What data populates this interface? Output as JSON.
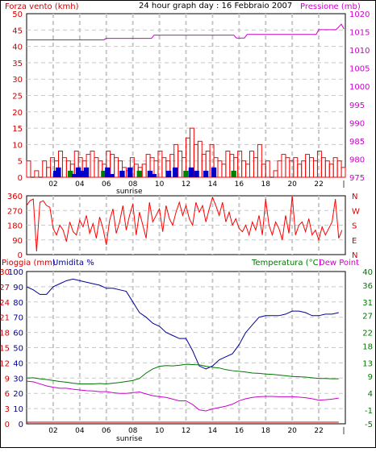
{
  "header": {
    "title": "24 hour graph day : 16 Febbraio 2007",
    "left_label": "Forza vento (kmh)",
    "right_label": "Pressione (mb)"
  },
  "labels": {
    "sunrise": "sunrise",
    "rain": "Pioggia (mm)",
    "humidity": "Umidita %",
    "temperature": "Temperatura (°C)",
    "dewpoint": "Dew Point"
  },
  "colors": {
    "wind": "#ff0000",
    "gust_green": "#008000",
    "gust_blue": "#0000cc",
    "pressure": "#cc00cc",
    "direction": "#ff0000",
    "humidity": "#000099",
    "temperature": "#007700",
    "dewpoint": "#cc00cc",
    "rain": "#cc0000"
  },
  "chart_data": [
    {
      "type": "bar",
      "name": "wind-pressure",
      "xticks": [
        "02",
        "04",
        "06",
        "08",
        "10",
        "12",
        "14",
        "16",
        "18",
        "20",
        "22"
      ],
      "ylim_left": [
        0,
        50
      ],
      "yticks_left": [
        "0",
        "5",
        "10",
        "15",
        "20",
        "25",
        "30",
        "35",
        "40",
        "45",
        "50"
      ],
      "ylim_right": [
        975,
        1020
      ],
      "yticks_right": [
        "975",
        "980",
        "985",
        "990",
        "995",
        "1000",
        "1005",
        "1010",
        "1015",
        "1020"
      ],
      "wind_hours": [
        0.0,
        0.3,
        0.6,
        0.9,
        1.2,
        1.5,
        1.8,
        2.1,
        2.4,
        2.7,
        3.0,
        3.3,
        3.6,
        3.9,
        4.2,
        4.5,
        4.8,
        5.1,
        5.4,
        5.7,
        6.0,
        6.3,
        6.6,
        6.9,
        7.2,
        7.5,
        7.8,
        8.1,
        8.4,
        8.7,
        9.0,
        9.3,
        9.6,
        9.9,
        10.2,
        10.5,
        10.8,
        11.1,
        11.4,
        11.7,
        12.0,
        12.3,
        12.6,
        12.9,
        13.2,
        13.5,
        13.8,
        14.1,
        14.4,
        14.7,
        15.0,
        15.3,
        15.6,
        15.9,
        16.2,
        16.5,
        16.8,
        17.1,
        17.4,
        17.7,
        18.0,
        18.3,
        18.6,
        18.9,
        19.2,
        19.5,
        19.8,
        20.1,
        20.4,
        20.7,
        21.0,
        21.3,
        21.6,
        21.9,
        22.2,
        22.5,
        22.8,
        23.1,
        23.4,
        23.7
      ],
      "wind_values": [
        5,
        0,
        2,
        0,
        5,
        3,
        6,
        5,
        8,
        6,
        5,
        4,
        8,
        6,
        5,
        7,
        8,
        6,
        5,
        4,
        8,
        7,
        6,
        5,
        3,
        2,
        6,
        4,
        3,
        4,
        7,
        6,
        5,
        8,
        6,
        5,
        7,
        10,
        8,
        6,
        12,
        15,
        10,
        11,
        7,
        8,
        10,
        6,
        5,
        4,
        8,
        7,
        6,
        8,
        5,
        4,
        8,
        6,
        10,
        4,
        5,
        0,
        2,
        5,
        7,
        6,
        5,
        6,
        4,
        5,
        7,
        6,
        5,
        8,
        6,
        5,
        4,
        6,
        5,
        3
      ],
      "gust_hours": [
        2.0,
        2.2,
        3.1,
        3.4,
        3.7,
        4.0,
        4.3,
        5.6,
        5.9,
        6.2,
        7.0,
        7.6,
        8.3,
        9.1,
        9.4,
        10.5,
        11.0,
        11.8,
        12.2,
        12.6,
        13.3,
        13.9,
        15.4
      ],
      "gust_values": [
        2,
        3,
        2,
        1,
        3,
        2,
        3,
        2,
        3,
        1,
        2,
        3,
        2,
        2,
        1,
        2,
        3,
        2,
        3,
        2,
        2,
        3,
        2
      ],
      "pressure_hours": [
        0,
        3,
        5.8,
        6.0,
        9.4,
        9.6,
        15.6,
        15.8,
        16.4,
        16.6,
        21.8,
        22.0,
        23.3,
        23.7,
        23.9
      ],
      "pressure_values": [
        1012.8,
        1012.8,
        1012.8,
        1013.2,
        1013.2,
        1014.1,
        1014.1,
        1013.3,
        1013.3,
        1014.3,
        1014.3,
        1015.6,
        1015.6,
        1017.1,
        1015.8
      ]
    },
    {
      "type": "line",
      "name": "wind-direction",
      "ylim": [
        0,
        360
      ],
      "yticks": [
        "0",
        "90",
        "180",
        "270",
        "360"
      ],
      "compass": [
        "N",
        "W",
        "S",
        "E",
        "N"
      ],
      "hours": [
        0.0,
        0.25,
        0.5,
        0.75,
        1.0,
        1.25,
        1.5,
        1.75,
        2.0,
        2.25,
        2.5,
        2.75,
        3.0,
        3.25,
        3.5,
        3.75,
        4.0,
        4.25,
        4.5,
        4.75,
        5.0,
        5.25,
        5.5,
        5.75,
        6.0,
        6.25,
        6.5,
        6.75,
        7.0,
        7.25,
        7.5,
        7.75,
        8.0,
        8.25,
        8.5,
        8.75,
        9.0,
        9.25,
        9.5,
        9.75,
        10.0,
        10.25,
        10.5,
        10.75,
        11.0,
        11.25,
        11.5,
        11.75,
        12.0,
        12.25,
        12.5,
        12.75,
        13.0,
        13.25,
        13.5,
        13.75,
        14.0,
        14.25,
        14.5,
        14.75,
        15.0,
        15.25,
        15.5,
        15.75,
        16.0,
        16.25,
        16.5,
        16.75,
        17.0,
        17.25,
        17.5,
        17.75,
        18.0,
        18.25,
        18.5,
        18.75,
        19.0,
        19.25,
        19.5,
        19.75,
        20.0,
        20.25,
        20.5,
        20.75,
        21.0,
        21.25,
        21.5,
        21.75,
        22.0,
        22.25,
        22.5,
        22.75,
        23.0,
        23.25,
        23.5,
        23.75
      ],
      "values": [
        300,
        330,
        340,
        20,
        320,
        330,
        300,
        290,
        160,
        120,
        180,
        150,
        80,
        200,
        140,
        120,
        210,
        170,
        240,
        130,
        190,
        100,
        230,
        160,
        60,
        210,
        280,
        130,
        200,
        300,
        150,
        240,
        310,
        120,
        260,
        180,
        100,
        320,
        200,
        240,
        280,
        140,
        300,
        220,
        180,
        260,
        320,
        240,
        300,
        220,
        180,
        320,
        260,
        300,
        200,
        280,
        350,
        300,
        240,
        320,
        200,
        260,
        180,
        220,
        160,
        140,
        180,
        120,
        200,
        150,
        240,
        120,
        340,
        180,
        120,
        200,
        160,
        90,
        240,
        130,
        360,
        120,
        180,
        200,
        140,
        220,
        120,
        150,
        90,
        170,
        120,
        160,
        200,
        340,
        100,
        150
      ]
    },
    {
      "type": "line",
      "name": "rain-humidity-temperature",
      "xticks": [
        "02",
        "04",
        "06",
        "08",
        "10",
        "12",
        "14",
        "16",
        "18",
        "20",
        "22"
      ],
      "ylim_rain": [
        0,
        30
      ],
      "yticks_rain": [
        "0",
        "3",
        "6",
        "9",
        "12",
        "15",
        "18",
        "21",
        "24",
        "27",
        "30"
      ],
      "ylim_humidity": [
        0,
        100
      ],
      "yticks_humidity": [
        "0",
        "10",
        "20",
        "30",
        "40",
        "50",
        "60",
        "70",
        "80",
        "90",
        "100"
      ],
      "ylim_temp": [
        -5,
        40
      ],
      "yticks_temp": [
        "-5",
        "-1",
        "4",
        "9",
        "13",
        "18",
        "22",
        "27",
        "31",
        "36",
        "40"
      ],
      "hours": [
        0,
        0.5,
        1,
        1.5,
        2,
        2.5,
        3,
        3.5,
        4,
        4.5,
        5,
        5.5,
        6,
        6.5,
        7,
        7.5,
        8,
        8.5,
        9,
        9.5,
        10,
        10.5,
        11,
        11.5,
        12,
        12.5,
        13,
        13.5,
        14,
        14.5,
        15,
        15.5,
        16,
        16.5,
        17,
        17.5,
        18,
        18.5,
        19,
        19.5,
        20,
        20.5,
        21,
        21.5,
        22,
        22.5,
        23,
        23.5
      ],
      "humidity": [
        90,
        88,
        85,
        85,
        90,
        92,
        94,
        95,
        94,
        93,
        92,
        91,
        89,
        89,
        88,
        87,
        80,
        73,
        70,
        66,
        64,
        60,
        58,
        56,
        56,
        48,
        38,
        36,
        38,
        42,
        44,
        46,
        52,
        60,
        65,
        70,
        71,
        71,
        71,
        72,
        74,
        74,
        73,
        71,
        71,
        72,
        72,
        73
      ],
      "temperature": [
        8.5,
        8.6,
        8.3,
        8.1,
        7.8,
        7.5,
        7.3,
        7.0,
        6.8,
        6.8,
        6.8,
        6.9,
        6.8,
        7.0,
        7.2,
        7.5,
        7.8,
        8.4,
        10.0,
        11.2,
        12.0,
        12.2,
        12.1,
        12.3,
        12.6,
        12.5,
        12.4,
        12.0,
        11.7,
        11.5,
        11.0,
        10.7,
        10.5,
        10.3,
        10.0,
        9.9,
        9.7,
        9.6,
        9.4,
        9.2,
        9.0,
        8.9,
        8.8,
        8.6,
        8.4,
        8.4,
        8.3,
        8.3
      ],
      "dewpoint": [
        7.6,
        7.4,
        6.8,
        6.2,
        5.8,
        5.5,
        5.5,
        5.2,
        5.0,
        4.8,
        4.7,
        4.5,
        4.5,
        4.2,
        4.0,
        4.0,
        4.2,
        4.4,
        3.8,
        3.3,
        3.0,
        2.8,
        2.3,
        1.8,
        1.8,
        0.7,
        -0.9,
        -1.2,
        -0.6,
        -0.2,
        0.2,
        0.8,
        1.8,
        2.4,
        2.8,
        3.0,
        3.1,
        3.1,
        3.0,
        3.0,
        3.0,
        2.9,
        2.7,
        2.4,
        2.0,
        2.1,
        2.3,
        2.6
      ],
      "rain": [
        0,
        0,
        0,
        0,
        0,
        0,
        0,
        0,
        0,
        0,
        0,
        0,
        0,
        0,
        0,
        0,
        0,
        0,
        0,
        0,
        0,
        0,
        0,
        0,
        0,
        0,
        0,
        0,
        0,
        0,
        0,
        0,
        0,
        0,
        0,
        0,
        0,
        0,
        0,
        0,
        0,
        0,
        0,
        0,
        0,
        0,
        0,
        0
      ]
    }
  ]
}
